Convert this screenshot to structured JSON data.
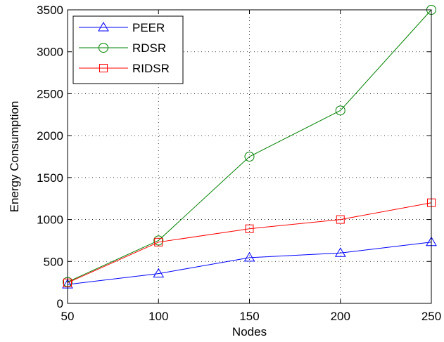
{
  "chart_data": {
    "type": "line",
    "title": "",
    "xlabel": "Nodes",
    "ylabel": "Energy Consumption",
    "x": [
      50,
      100,
      150,
      200,
      250
    ],
    "xlim": [
      50,
      250
    ],
    "ylim": [
      0,
      3500
    ],
    "xticks": [
      "50",
      "100",
      "150",
      "200",
      "250"
    ],
    "yticks": [
      "0",
      "500",
      "1000",
      "1500",
      "2000",
      "2500",
      "3000",
      "3500"
    ],
    "grid": true,
    "legend_position": "top-left",
    "series": [
      {
        "name": "PEER",
        "color": "#0000ff",
        "marker": "triangle",
        "values": [
          225,
          355,
          545,
          600,
          730
        ]
      },
      {
        "name": "RDSR",
        "color": "#008000",
        "marker": "circle",
        "values": [
          255,
          750,
          1750,
          2300,
          3500
        ]
      },
      {
        "name": "RIDSR",
        "color": "#ff0000",
        "marker": "square",
        "values": [
          245,
          730,
          890,
          1000,
          1200
        ]
      }
    ]
  }
}
